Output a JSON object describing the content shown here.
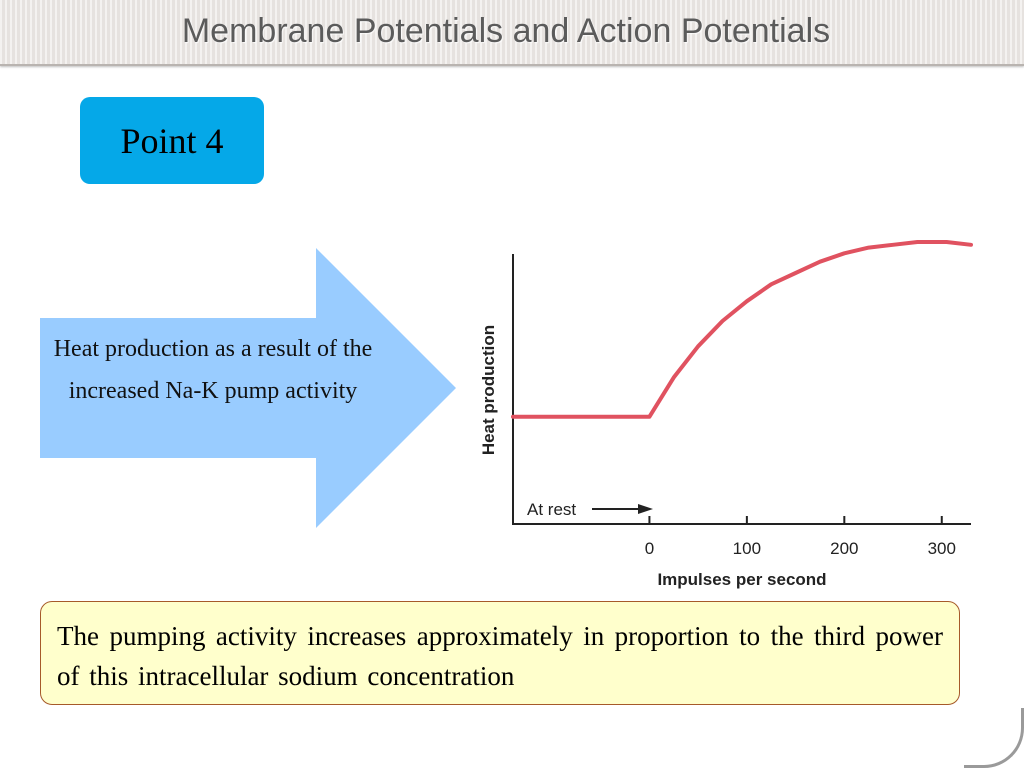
{
  "slide": {
    "title": "Membrane Potentials and Action Potentials",
    "badge": "Point 4",
    "arrow_text": "Heat production as a result of the increased Na-K pump activity",
    "note": "The pumping activity  increases  approximately  in proportion  to the  third power  of  this  intracellular  sodium  concentration",
    "colors": {
      "badge": "#05a8e8",
      "arrow": "#99ccff",
      "curve": "#e05260",
      "note_bg": "#ffffcc",
      "note_border": "#a65a2a"
    }
  },
  "chart_data": {
    "type": "line",
    "title": "",
    "xlabel": "Impulses per second",
    "ylabel": "Heat production",
    "x_ticks": [
      0,
      100,
      200,
      300
    ],
    "xlim": [
      -140,
      330
    ],
    "ylim": [
      0,
      1
    ],
    "grid": false,
    "annotation": "At rest",
    "series": [
      {
        "x": [
          -140,
          -100,
          -50,
          0,
          25,
          50,
          75,
          100,
          125,
          150,
          175,
          200,
          225,
          250,
          275,
          290,
          305,
          330
        ],
        "y": [
          0.38,
          0.38,
          0.38,
          0.38,
          0.52,
          0.63,
          0.72,
          0.79,
          0.85,
          0.89,
          0.93,
          0.96,
          0.98,
          0.99,
          1.0,
          1.0,
          1.0,
          0.99
        ]
      }
    ]
  }
}
